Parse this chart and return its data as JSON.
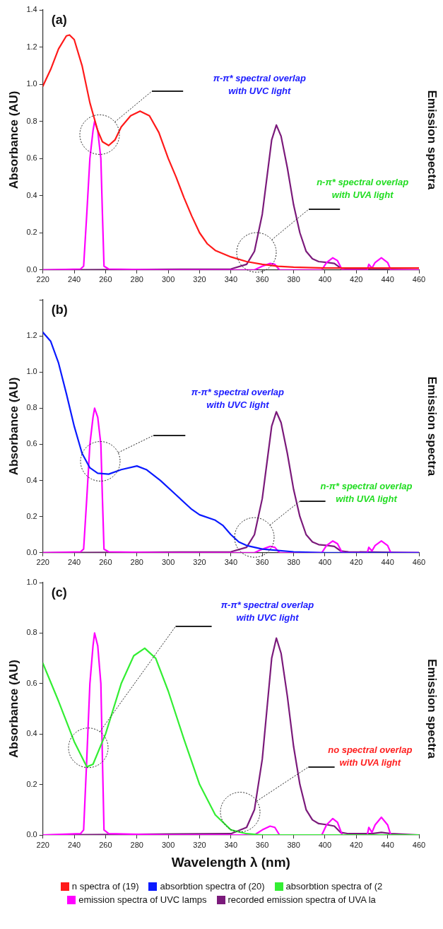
{
  "chart_data": [
    {
      "type": "line",
      "title": "(a)",
      "ylabel": "Absorbance (AU)",
      "y2label": "Emission spectra",
      "xlim": [
        220,
        460
      ],
      "xticks": [
        220,
        240,
        260,
        280,
        300,
        320,
        340,
        360,
        380,
        400,
        420,
        440,
        460
      ],
      "ylim": [
        0,
        1.4
      ],
      "yticks": [
        {
          "value": 0,
          "label": "0.0"
        },
        0.2,
        0.4,
        0.6,
        0.8,
        {
          "value": 1,
          "label": "1.0"
        },
        1.2,
        1.4
      ],
      "legend": "bottom",
      "marker": "none",
      "annotations": [
        "π-π* spectral overlap\nwith UVC light",
        "n-π* spectral overlap\nwith UVA light"
      ],
      "series": [
        {
          "name": "n spectra of (19)",
          "color": "#ff1a1a",
          "x": [
            220,
            225,
            230,
            235,
            237,
            240,
            245,
            250,
            255,
            258,
            262,
            266,
            270,
            276,
            282,
            288,
            294,
            300,
            305,
            310,
            315,
            320,
            325,
            330,
            340,
            350,
            360,
            370,
            380,
            400,
            430,
            460
          ],
          "values": [
            0.99,
            1.08,
            1.19,
            1.26,
            1.265,
            1.24,
            1.1,
            0.9,
            0.75,
            0.69,
            0.67,
            0.7,
            0.77,
            0.83,
            0.855,
            0.83,
            0.74,
            0.6,
            0.5,
            0.39,
            0.29,
            0.2,
            0.14,
            0.105,
            0.07,
            0.045,
            0.03,
            0.02,
            0.015,
            0.01,
            0.01,
            0.01
          ]
        },
        {
          "color": "#ff00ff",
          "x": [
            220,
            244,
            246,
            248,
            250,
            252,
            253,
            255,
            257,
            258,
            259,
            262,
            300,
            355,
            360,
            365,
            368,
            371,
            398,
            401,
            405,
            408,
            411,
            427,
            428,
            430,
            432,
            436,
            440,
            442,
            460
          ],
          "values": [
            0,
            0.005,
            0.02,
            0.3,
            0.6,
            0.75,
            0.8,
            0.75,
            0.6,
            0.3,
            0.02,
            0.005,
            0,
            0,
            0.02,
            0.035,
            0.03,
            0,
            0,
            0.04,
            0.065,
            0.05,
            0,
            0,
            0.03,
            0.01,
            0.04,
            0.065,
            0.04,
            0,
            0
          ]
        },
        {
          "color": "#7b1a7b",
          "x": [
            220,
            340,
            350,
            355,
            360,
            363,
            366,
            369,
            372,
            376,
            380,
            384,
            388,
            392,
            396,
            402,
            406,
            410,
            415,
            460
          ],
          "values": [
            0,
            0.005,
            0.03,
            0.1,
            0.3,
            0.5,
            0.7,
            0.78,
            0.72,
            0.55,
            0.35,
            0.2,
            0.1,
            0.06,
            0.045,
            0.04,
            0.035,
            0.01,
            0.005,
            0
          ]
        }
      ]
    },
    {
      "type": "line",
      "title": "(b)",
      "ylabel": "Absorbance (AU)",
      "y2label": "Emission spectra",
      "xlim": [
        220,
        460
      ],
      "xticks": [
        220,
        240,
        260,
        280,
        300,
        320,
        340,
        360,
        380,
        400,
        420,
        440,
        460
      ],
      "ylim": [
        0,
        1.4
      ],
      "yticks": [
        {
          "value": 0,
          "label": "0.0"
        },
        0.2,
        0.4,
        0.6,
        0.8,
        {
          "value": 1,
          "label": "1.0"
        },
        1.2,
        {
          "value": 1.4,
          "label": null
        }
      ],
      "legend": "bottom",
      "marker": "none",
      "annotations": [
        "π-π* spectral overlap\nwith UVC light",
        "n-π* spectral overlap\nwith UVA light"
      ],
      "series": [
        {
          "name": "absorbtion spectra of (20)",
          "color": "#0a1aff",
          "x": [
            220,
            225,
            230,
            235,
            240,
            245,
            250,
            255,
            262,
            270,
            280,
            286,
            295,
            305,
            315,
            320,
            330,
            335,
            340,
            345,
            350,
            360,
            380,
            400,
            460
          ],
          "values": [
            1.22,
            1.17,
            1.05,
            0.88,
            0.7,
            0.55,
            0.47,
            0.44,
            0.435,
            0.46,
            0.48,
            0.46,
            0.4,
            0.32,
            0.24,
            0.21,
            0.18,
            0.15,
            0.1,
            0.06,
            0.04,
            0.02,
            0.005,
            0,
            0
          ]
        },
        {
          "color": "#ff00ff",
          "x": [
            220,
            244,
            246,
            248,
            250,
            252,
            253,
            255,
            257,
            258,
            259,
            262,
            300,
            355,
            360,
            365,
            368,
            371,
            398,
            401,
            405,
            408,
            411,
            427,
            428,
            430,
            432,
            436,
            440,
            442,
            460
          ],
          "values": [
            0,
            0.005,
            0.02,
            0.3,
            0.6,
            0.75,
            0.8,
            0.75,
            0.6,
            0.3,
            0.02,
            0.005,
            0,
            0,
            0.02,
            0.035,
            0.03,
            0,
            0,
            0.04,
            0.065,
            0.05,
            0,
            0,
            0.03,
            0.01,
            0.04,
            0.065,
            0.04,
            0,
            0
          ]
        },
        {
          "color": "#7b1a7b",
          "x": [
            220,
            340,
            350,
            355,
            360,
            363,
            366,
            369,
            372,
            376,
            380,
            384,
            388,
            392,
            396,
            402,
            406,
            410,
            415,
            460
          ],
          "values": [
            0,
            0.005,
            0.03,
            0.1,
            0.3,
            0.5,
            0.7,
            0.78,
            0.72,
            0.55,
            0.35,
            0.2,
            0.1,
            0.06,
            0.045,
            0.04,
            0.035,
            0.01,
            0.005,
            0
          ]
        }
      ]
    },
    {
      "type": "line",
      "title": "(c)",
      "xlabel": "Wavelength λ (nm)",
      "ylabel": "Absorbance (AU)",
      "y2label": "Emission spectra",
      "xlim": [
        220,
        460
      ],
      "xticks": [
        220,
        240,
        260,
        280,
        300,
        320,
        340,
        360,
        380,
        400,
        420,
        440,
        460
      ],
      "ylim": [
        0,
        1.0
      ],
      "yticks": [
        {
          "value": 0,
          "label": "0.0"
        },
        0.2,
        0.4,
        0.6,
        0.8,
        {
          "value": 1,
          "label": "1.0"
        }
      ],
      "legend": "bottom",
      "marker": "none",
      "annotations": [
        "π-π* spectral overlap\nwith UVC light",
        "no spectral overlap\nwith UVA light"
      ],
      "series": [
        {
          "name": "absorbtion spectra of (2",
          "color": "#33ee33",
          "x": [
            220,
            230,
            240,
            248,
            252,
            260,
            270,
            278,
            285,
            292,
            300,
            310,
            320,
            330,
            340,
            350,
            360,
            460
          ],
          "values": [
            0.68,
            0.53,
            0.37,
            0.27,
            0.28,
            0.4,
            0.6,
            0.71,
            0.74,
            0.7,
            0.57,
            0.38,
            0.2,
            0.08,
            0.02,
            0.005,
            0,
            0
          ]
        },
        {
          "name": "emission spectra of UVC lamps",
          "color": "#ff00ff",
          "x": [
            220,
            244,
            246,
            248,
            250,
            252,
            253,
            255,
            257,
            258,
            259,
            262,
            300,
            355,
            360,
            365,
            368,
            371,
            398,
            401,
            405,
            408,
            411,
            427,
            428,
            430,
            432,
            436,
            440,
            442,
            460
          ],
          "values": [
            0,
            0.005,
            0.02,
            0.3,
            0.6,
            0.75,
            0.8,
            0.75,
            0.6,
            0.3,
            0.02,
            0.005,
            0,
            0,
            0.02,
            0.035,
            0.03,
            0,
            0,
            0.04,
            0.065,
            0.05,
            0,
            0,
            0.03,
            0.01,
            0.04,
            0.07,
            0.04,
            0,
            0
          ]
        },
        {
          "name": "recorded emission spectra of UVA la",
          "color": "#7b1a7b",
          "x": [
            220,
            340,
            350,
            355,
            360,
            363,
            366,
            369,
            372,
            376,
            380,
            384,
            388,
            392,
            396,
            402,
            406,
            410,
            415,
            430,
            436,
            442,
            460
          ],
          "values": [
            0,
            0.005,
            0.03,
            0.1,
            0.3,
            0.5,
            0.7,
            0.78,
            0.72,
            0.55,
            0.35,
            0.2,
            0.1,
            0.06,
            0.045,
            0.04,
            0.035,
            0.01,
            0.005,
            0.005,
            0.01,
            0.005,
            0
          ]
        }
      ]
    }
  ]
}
